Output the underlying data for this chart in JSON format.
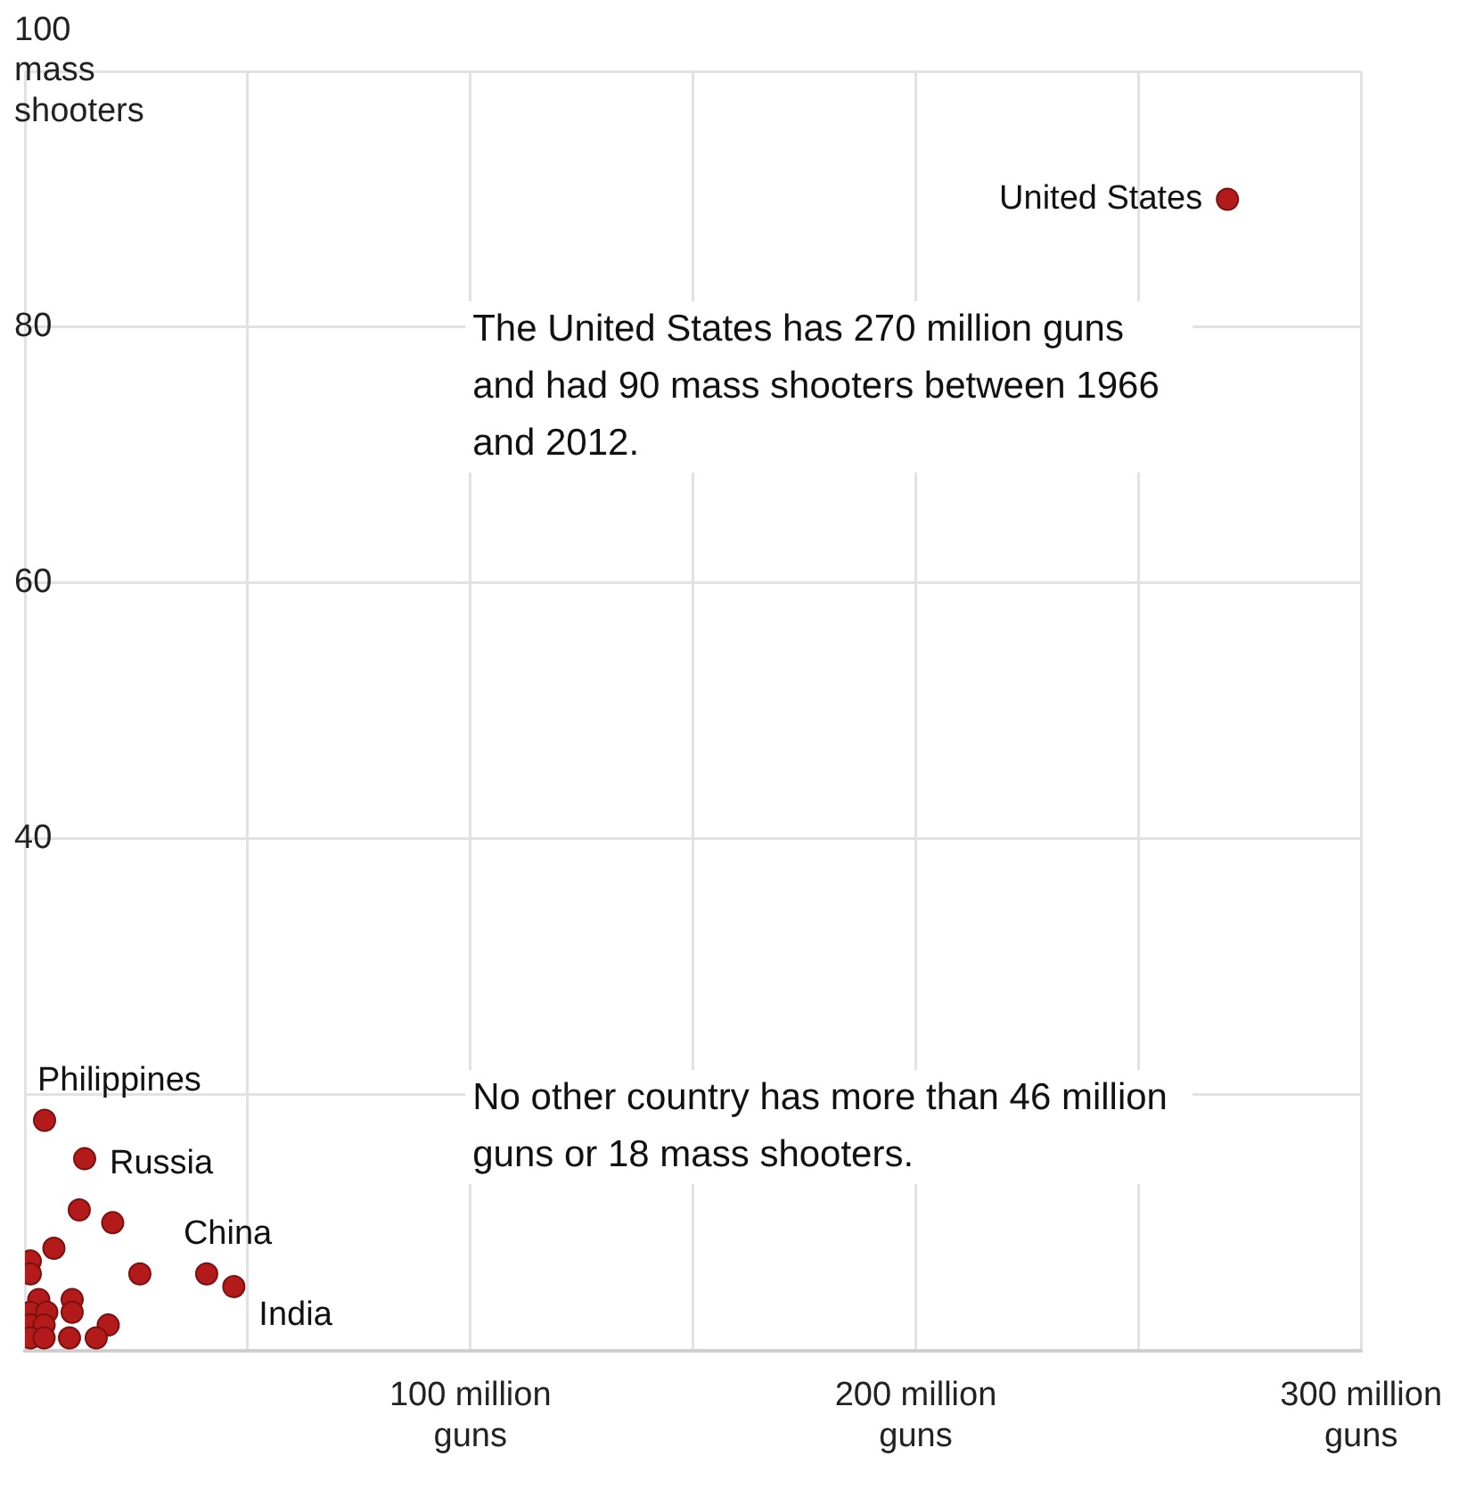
{
  "chart_data": {
    "type": "scatter",
    "x": [
      270,
      4.4,
      13.4,
      12.2,
      19.7,
      6.5,
      1.2,
      1.2,
      25.8,
      40.8,
      46.9,
      10.6,
      10.6,
      3.1,
      1.2,
      4.9,
      18.7,
      1.2,
      4.3,
      1.2,
      4.3,
      10,
      16
    ],
    "series": [
      {
        "color": "#b31b1b",
        "values": [
          90,
          18,
          15,
          11,
          10,
          8,
          7,
          6,
          6,
          6,
          5,
          4,
          3,
          4,
          3,
          3,
          2,
          2,
          2,
          1,
          1,
          1,
          1
        ]
      }
    ],
    "xlim": [
      0,
      300
    ],
    "xticks": [
      {
        "value": 0,
        "label": null
      },
      {
        "value": 50,
        "label": null
      },
      {
        "value": 100,
        "label": "100 million guns"
      },
      {
        "value": 150,
        "label": null
      },
      {
        "value": 200,
        "label": "200 million guns"
      },
      {
        "value": 250,
        "label": null
      },
      {
        "value": 300,
        "label": "300 million guns"
      }
    ],
    "ylim": [
      0,
      100
    ],
    "yticks": [
      {
        "value": 0,
        "label": null
      },
      {
        "value": 20,
        "label": null
      },
      40,
      60,
      80,
      {
        "value": 100,
        "label": "100 mass shooters"
      }
    ],
    "grid": true,
    "marker": "circle",
    "annotations": [
      {
        "text": "United States",
        "x": 270,
        "y": 90
      },
      {
        "text": "Philippines",
        "x": 4.4,
        "y": 18
      },
      {
        "text": "Russia",
        "x": 13.4,
        "y": 15
      },
      {
        "text": "China",
        "x": 40.8,
        "y": 6
      },
      {
        "text": "India",
        "x": 46.9,
        "y": 5
      },
      "The United States has 270 million guns and had 90 mass shooters between 1966 and 2012.",
      "No other country has more than 46 million guns or 18 mass shooters."
    ]
  }
}
